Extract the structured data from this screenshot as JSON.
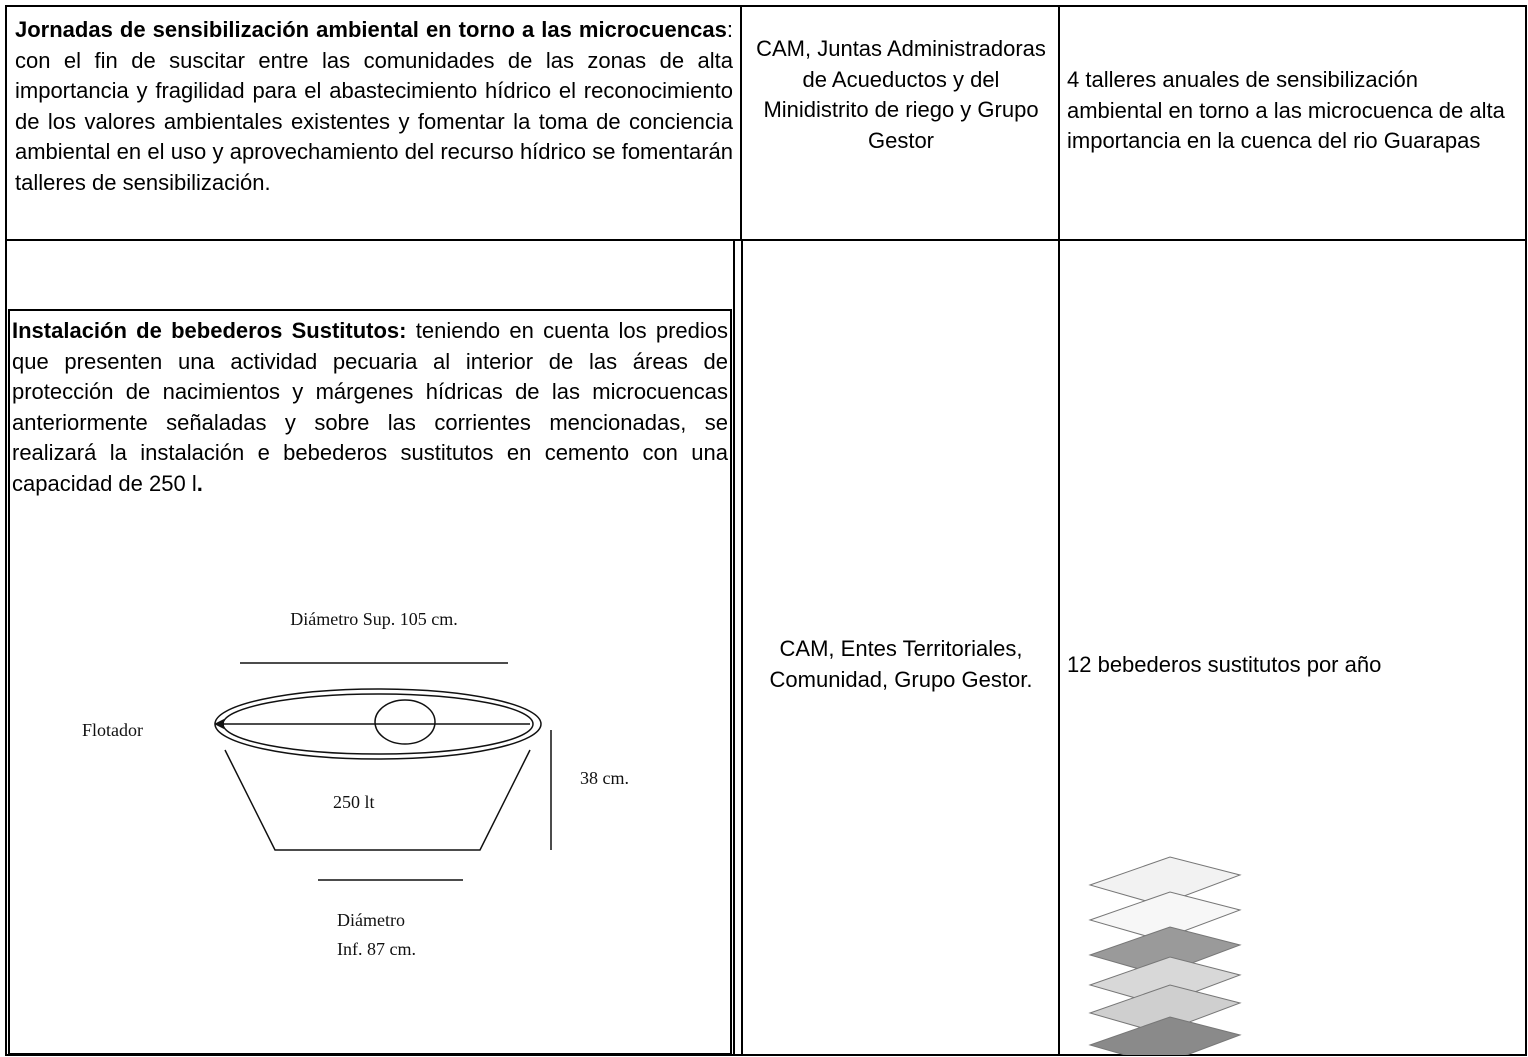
{
  "table": {
    "rows": [
      [
        {
          "title": "Jornadas de sensibilización ambiental en torno a las microcuencas",
          "text": ": con el fin de suscitar entre las comunidades de las zonas de alta importancia y fragilidad para el abastecimiento hídrico el reconocimiento de los valores ambientales existentes y fomentar la toma de conciencia ambiental en el uso y aprovechamiento del recurso hídrico se fomentarán talleres de sensibilización."
        },
        "CAM, Juntas Administradoras de Acueductos y del Minidistrito de riego y Grupo Gestor",
        "4 talleres anuales de sensibilización ambiental en torno a las microcuenca de alta importancia en la cuenca del rio Guarapas"
      ],
      [
        {
          "title": "Instalación de bebederos Sustitutos:",
          "text": " teniendo en cuenta los predios que presenten una actividad pecuaria al interior de las áreas de protección de nacimientos y márgenes hídricas de las microcuencas anteriormente señaladas y sobre las corrientes mencionadas, se realizará la instalación e bebederos sustitutos en cemento con una capacidad de 250 l",
          "end": "."
        },
        "CAM, Entes Territoriales, Comunidad, Grupo Gestor.",
        "12 bebederos sustitutos por año"
      ]
    ]
  },
  "diagram": {
    "labels": {
      "top_diameter": "Diámetro Sup. 105 cm.",
      "float": "Flotador",
      "height": "38 cm.",
      "capacity": "250 lt",
      "bottom_diameter_1": "Diámetro",
      "bottom_diameter_2": "Inf. 87 cm."
    }
  }
}
